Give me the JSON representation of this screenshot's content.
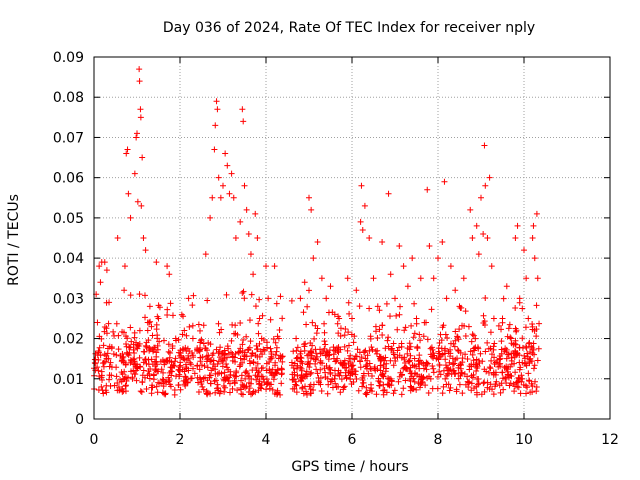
{
  "chart_data": {
    "type": "scatter",
    "title": "Day 036 of 2024, Rate Of TEC Index for receiver nply",
    "xlabel": "GPS time / hours",
    "ylabel": "ROTI / TECUs",
    "xlim": [
      0,
      12
    ],
    "ylim": [
      0,
      0.09
    ],
    "x_ticks": [
      0,
      2,
      4,
      6,
      8,
      10,
      12
    ],
    "x_tick_labels": [
      "0",
      "2",
      "4",
      "6",
      "8",
      "10",
      "12"
    ],
    "y_ticks": [
      0,
      0.01,
      0.02,
      0.03,
      0.04,
      0.05,
      0.06,
      0.07,
      0.08,
      0.09
    ],
    "y_tick_labels": [
      "0",
      "0.01",
      "0.02",
      "0.03",
      "0.04",
      "0.05",
      "0.06",
      "0.07",
      "0.08",
      "0.09"
    ],
    "grid": true,
    "marker": "+",
    "series_color": "#ff0000",
    "data_extent_hours": [
      0,
      10.35
    ],
    "gap_hours": [
      4.4,
      4.6
    ],
    "series": [
      {
        "name": "ROTI",
        "points": [
          [
            0.05,
            0.031
          ],
          [
            0.08,
            0.024
          ],
          [
            0.12,
            0.038
          ],
          [
            0.15,
            0.034
          ],
          [
            0.18,
            0.039
          ],
          [
            0.25,
            0.039
          ],
          [
            0.3,
            0.037
          ],
          [
            0.35,
            0.029
          ],
          [
            0.55,
            0.045
          ],
          [
            0.7,
            0.032
          ],
          [
            0.72,
            0.038
          ],
          [
            0.75,
            0.066
          ],
          [
            0.78,
            0.067
          ],
          [
            0.8,
            0.056
          ],
          [
            0.85,
            0.05
          ],
          [
            0.95,
            0.061
          ],
          [
            0.98,
            0.07
          ],
          [
            1.0,
            0.071
          ],
          [
            1.02,
            0.054
          ],
          [
            1.05,
            0.087
          ],
          [
            1.06,
            0.084
          ],
          [
            1.08,
            0.077
          ],
          [
            1.09,
            0.075
          ],
          [
            1.1,
            0.053
          ],
          [
            1.12,
            0.065
          ],
          [
            1.15,
            0.045
          ],
          [
            1.2,
            0.042
          ],
          [
            1.25,
            0.022
          ],
          [
            1.3,
            0.028
          ],
          [
            1.45,
            0.039
          ],
          [
            1.5,
            0.025
          ],
          [
            1.7,
            0.038
          ],
          [
            1.75,
            0.036
          ],
          [
            1.9,
            0.02
          ],
          [
            2.1,
            0.022
          ],
          [
            2.2,
            0.03
          ],
          [
            2.3,
            0.02
          ],
          [
            2.6,
            0.041
          ],
          [
            2.7,
            0.05
          ],
          [
            2.75,
            0.055
          ],
          [
            2.8,
            0.067
          ],
          [
            2.82,
            0.073
          ],
          [
            2.85,
            0.079
          ],
          [
            2.87,
            0.077
          ],
          [
            2.9,
            0.06
          ],
          [
            2.95,
            0.055
          ],
          [
            3.0,
            0.058
          ],
          [
            3.05,
            0.066
          ],
          [
            3.1,
            0.063
          ],
          [
            3.15,
            0.056
          ],
          [
            3.2,
            0.061
          ],
          [
            3.25,
            0.055
          ],
          [
            3.3,
            0.045
          ],
          [
            3.4,
            0.049
          ],
          [
            3.45,
            0.077
          ],
          [
            3.47,
            0.074
          ],
          [
            3.5,
            0.058
          ],
          [
            3.55,
            0.052
          ],
          [
            3.6,
            0.046
          ],
          [
            3.65,
            0.041
          ],
          [
            3.7,
            0.036
          ],
          [
            3.75,
            0.051
          ],
          [
            3.8,
            0.045
          ],
          [
            3.85,
            0.025
          ],
          [
            3.9,
            0.02
          ],
          [
            4.0,
            0.038
          ],
          [
            4.05,
            0.03
          ],
          [
            4.2,
            0.038
          ],
          [
            4.3,
            0.02
          ],
          [
            4.7,
            0.02
          ],
          [
            4.8,
            0.03
          ],
          [
            4.9,
            0.034
          ],
          [
            5.0,
            0.055
          ],
          [
            5.05,
            0.052
          ],
          [
            5.1,
            0.04
          ],
          [
            5.2,
            0.044
          ],
          [
            5.3,
            0.035
          ],
          [
            5.4,
            0.03
          ],
          [
            5.5,
            0.033
          ],
          [
            5.6,
            0.026
          ],
          [
            5.7,
            0.025
          ],
          [
            5.9,
            0.035
          ],
          [
            6.0,
            0.025
          ],
          [
            6.1,
            0.032
          ],
          [
            6.2,
            0.049
          ],
          [
            6.22,
            0.058
          ],
          [
            6.25,
            0.047
          ],
          [
            6.3,
            0.053
          ],
          [
            6.4,
            0.045
          ],
          [
            6.5,
            0.035
          ],
          [
            6.6,
            0.028
          ],
          [
            6.7,
            0.044
          ],
          [
            6.85,
            0.056
          ],
          [
            6.9,
            0.036
          ],
          [
            7.0,
            0.03
          ],
          [
            7.1,
            0.043
          ],
          [
            7.2,
            0.038
          ],
          [
            7.3,
            0.033
          ],
          [
            7.4,
            0.04
          ],
          [
            7.5,
            0.025
          ],
          [
            7.6,
            0.035
          ],
          [
            7.75,
            0.057
          ],
          [
            7.8,
            0.043
          ],
          [
            7.9,
            0.035
          ],
          [
            8.0,
            0.04
          ],
          [
            8.1,
            0.044
          ],
          [
            8.15,
            0.059
          ],
          [
            8.2,
            0.03
          ],
          [
            8.3,
            0.038
          ],
          [
            8.4,
            0.032
          ],
          [
            8.5,
            0.028
          ],
          [
            8.6,
            0.035
          ],
          [
            8.75,
            0.052
          ],
          [
            8.8,
            0.045
          ],
          [
            8.9,
            0.048
          ],
          [
            8.95,
            0.041
          ],
          [
            9.0,
            0.055
          ],
          [
            9.05,
            0.046
          ],
          [
            9.08,
            0.068
          ],
          [
            9.1,
            0.058
          ],
          [
            9.15,
            0.045
          ],
          [
            9.2,
            0.06
          ],
          [
            9.25,
            0.038
          ],
          [
            9.3,
            0.025
          ],
          [
            9.5,
            0.025
          ],
          [
            9.6,
            0.033
          ],
          [
            9.7,
            0.02
          ],
          [
            9.8,
            0.045
          ],
          [
            9.85,
            0.048
          ],
          [
            9.9,
            0.03
          ],
          [
            10.0,
            0.042
          ],
          [
            10.05,
            0.035
          ],
          [
            10.1,
            0.025
          ],
          [
            10.2,
            0.045
          ],
          [
            10.22,
            0.048
          ],
          [
            10.25,
            0.04
          ],
          [
            10.3,
            0.051
          ],
          [
            10.32,
            0.035
          ]
        ]
      }
    ]
  }
}
